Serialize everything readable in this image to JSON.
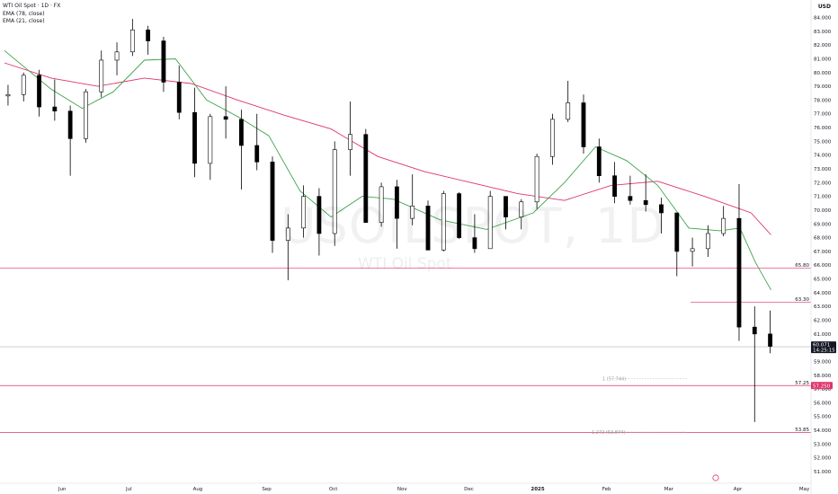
{
  "chart_data": {
    "type": "candlestick",
    "symbol_line": "WTI Oil Spot · 1D · FX",
    "indicators": [
      "EMA (78, close)",
      "EMA (21, close)"
    ],
    "currency": "USD",
    "watermark_symbol": "USOILSPOT, 1D",
    "watermark_name": "WTI Oil Spot",
    "ylim": [
      50.2,
      84.6
    ],
    "y_ticks": [
      "51.000",
      "52.000",
      "53.000",
      "54.000",
      "55.000",
      "56.000",
      "57.000",
      "58.000",
      "59.000",
      "60.000",
      "61.000",
      "62.000",
      "63.000",
      "64.000",
      "65.000",
      "66.000",
      "67.000",
      "68.000",
      "69.000",
      "70.000",
      "71.000",
      "72.000",
      "73.000",
      "74.000",
      "75.000",
      "76.000",
      "77.000",
      "78.000",
      "79.000",
      "80.000",
      "81.000",
      "82.000",
      "83.000",
      "84.000"
    ],
    "x_ticks": [
      {
        "label": "Jun",
        "date": "2024-06-01"
      },
      {
        "label": "Jul",
        "date": "2024-07-01"
      },
      {
        "label": "Aug",
        "date": "2024-08-01"
      },
      {
        "label": "Sep",
        "date": "2024-09-01"
      },
      {
        "label": "Oct",
        "date": "2024-10-01"
      },
      {
        "label": "Nov",
        "date": "2024-11-01"
      },
      {
        "label": "Dec",
        "date": "2024-12-01"
      },
      {
        "label": "2025",
        "date": "2025-01-01"
      },
      {
        "label": "Feb",
        "date": "2025-02-01"
      },
      {
        "label": "Mar",
        "date": "2025-03-01"
      },
      {
        "label": "Apr",
        "date": "2025-04-01"
      },
      {
        "label": "May",
        "date": "2025-05-01"
      }
    ],
    "x_range": [
      "2024-05-04",
      "2025-05-04"
    ],
    "current_price": {
      "label": "60.071",
      "countdown": "14:25:15",
      "value": 60.07
    },
    "horizontal_lines": [
      {
        "label": "65.80",
        "value": 65.8
      },
      {
        "label": "63.30",
        "value": 63.3
      },
      {
        "label": "57.25",
        "value": 57.25
      },
      {
        "label": "53.85",
        "value": 53.85
      }
    ],
    "highlight_label": {
      "label": "57.250",
      "value": 57.25
    },
    "fib_levels": [
      {
        "label": "1 (57.744)",
        "value": 57.744
      },
      {
        "label": "1.272 (53.874)",
        "value": 53.874
      }
    ],
    "ohlc": [
      [
        "2024-05-06",
        78.3,
        79.1,
        77.6,
        78.4
      ],
      [
        "2024-05-13",
        78.4,
        80.0,
        77.9,
        79.8
      ],
      [
        "2024-05-20",
        79.8,
        80.2,
        76.8,
        77.5
      ],
      [
        "2024-05-27",
        77.5,
        79.5,
        76.5,
        77.2
      ],
      [
        "2024-06-03",
        77.2,
        77.6,
        72.5,
        75.2
      ],
      [
        "2024-06-10",
        75.2,
        78.8,
        74.9,
        78.6
      ],
      [
        "2024-06-17",
        78.6,
        81.6,
        78.2,
        80.9
      ],
      [
        "2024-06-24",
        80.9,
        82.2,
        79.8,
        81.5
      ],
      [
        "2024-07-01",
        81.5,
        83.9,
        81.2,
        83.1
      ],
      [
        "2024-07-08",
        83.1,
        83.4,
        81.3,
        82.3
      ],
      [
        "2024-07-15",
        82.3,
        82.6,
        78.6,
        79.3
      ],
      [
        "2024-07-22",
        79.3,
        80.5,
        76.6,
        77.1
      ],
      [
        "2024-07-29",
        77.1,
        78.9,
        72.4,
        73.4
      ],
      [
        "2024-08-05",
        73.4,
        77.0,
        72.2,
        76.8
      ],
      [
        "2024-08-12",
        76.8,
        79.0,
        75.2,
        76.6
      ],
      [
        "2024-08-19",
        76.6,
        77.3,
        71.5,
        74.7
      ],
      [
        "2024-08-26",
        74.7,
        77.0,
        72.9,
        73.5
      ],
      [
        "2024-09-02",
        73.5,
        73.9,
        66.9,
        67.8
      ],
      [
        "2024-09-09",
        67.8,
        69.7,
        64.9,
        68.7
      ],
      [
        "2024-09-16",
        68.7,
        71.8,
        68.0,
        71.0
      ],
      [
        "2024-09-23",
        71.0,
        71.6,
        66.7,
        68.3
      ],
      [
        "2024-09-30",
        68.3,
        75.0,
        67.4,
        74.4
      ],
      [
        "2024-10-07",
        74.4,
        77.9,
        72.5,
        75.5
      ],
      [
        "2024-10-14",
        75.5,
        75.9,
        69.2,
        69.1
      ],
      [
        "2024-10-21",
        69.1,
        72.0,
        68.8,
        71.7
      ],
      [
        "2024-10-28",
        71.7,
        72.2,
        67.2,
        69.4
      ],
      [
        "2024-11-04",
        69.4,
        72.6,
        68.9,
        70.3
      ],
      [
        "2024-11-11",
        70.3,
        70.7,
        67.1,
        67.1
      ],
      [
        "2024-11-18",
        67.1,
        71.4,
        67.0,
        71.2
      ],
      [
        "2024-11-25",
        71.2,
        71.3,
        67.9,
        68.0
      ],
      [
        "2024-12-02",
        68.0,
        69.7,
        66.9,
        67.2
      ],
      [
        "2024-12-09",
        67.2,
        71.4,
        67.3,
        71.0
      ],
      [
        "2024-12-16",
        71.0,
        71.0,
        68.6,
        69.5
      ],
      [
        "2024-12-23",
        69.5,
        70.8,
        68.6,
        70.6
      ],
      [
        "2024-12-30",
        70.6,
        74.1,
        70.1,
        73.9
      ],
      [
        "2025-01-06",
        73.9,
        77.0,
        73.3,
        76.6
      ],
      [
        "2025-01-13",
        76.6,
        79.4,
        76.4,
        77.8
      ],
      [
        "2025-01-20",
        77.8,
        78.4,
        74.1,
        74.6
      ],
      [
        "2025-01-27",
        74.6,
        75.2,
        72.0,
        72.5
      ],
      [
        "2025-02-03",
        72.5,
        73.5,
        70.5,
        71.0
      ],
      [
        "2025-02-10",
        71.0,
        72.5,
        70.4,
        70.7
      ],
      [
        "2025-02-17",
        70.7,
        72.6,
        69.9,
        70.4
      ],
      [
        "2025-02-24",
        70.4,
        70.9,
        68.3,
        69.8
      ],
      [
        "2025-03-03",
        69.8,
        69.8,
        65.2,
        67.0
      ],
      [
        "2025-03-10",
        67.0,
        68.0,
        65.9,
        67.2
      ],
      [
        "2025-03-17",
        67.2,
        68.9,
        66.6,
        68.3
      ],
      [
        "2025-03-24",
        68.3,
        70.3,
        68.1,
        69.4
      ],
      [
        "2025-03-31",
        69.4,
        71.9,
        60.5,
        61.5
      ],
      [
        "2025-04-07",
        61.5,
        63.0,
        54.6,
        61.0
      ],
      [
        "2025-04-14",
        61.0,
        62.7,
        59.6,
        60.1
      ]
    ],
    "ema78": [
      [
        "2024-05-06",
        80.7
      ],
      [
        "2024-05-27",
        79.6
      ],
      [
        "2024-06-17",
        79.0
      ],
      [
        "2024-07-08",
        79.6
      ],
      [
        "2024-07-29",
        79.2
      ],
      [
        "2024-08-19",
        78.0
      ],
      [
        "2024-09-09",
        76.9
      ],
      [
        "2024-09-30",
        75.9
      ],
      [
        "2024-10-21",
        73.9
      ],
      [
        "2024-11-11",
        72.8
      ],
      [
        "2024-12-02",
        72.0
      ],
      [
        "2024-12-23",
        71.2
      ],
      [
        "2025-01-13",
        70.7
      ],
      [
        "2025-02-03",
        71.8
      ],
      [
        "2025-02-24",
        72.1
      ],
      [
        "2025-03-17",
        71.0
      ],
      [
        "2025-04-07",
        69.8
      ],
      [
        "2025-04-16",
        68.2
      ]
    ],
    "ema21": [
      [
        "2024-05-06",
        81.6
      ],
      [
        "2024-05-27",
        78.8
      ],
      [
        "2024-06-10",
        77.4
      ],
      [
        "2024-06-24",
        78.6
      ],
      [
        "2024-07-08",
        80.9
      ],
      [
        "2024-07-22",
        81.0
      ],
      [
        "2024-08-05",
        78.0
      ],
      [
        "2024-08-19",
        76.8
      ],
      [
        "2024-09-02",
        75.4
      ],
      [
        "2024-09-16",
        71.4
      ],
      [
        "2024-09-30",
        69.5
      ],
      [
        "2024-10-14",
        71.0
      ],
      [
        "2024-10-28",
        70.8
      ],
      [
        "2024-11-18",
        69.3
      ],
      [
        "2024-12-09",
        68.6
      ],
      [
        "2024-12-30",
        69.8
      ],
      [
        "2025-01-13",
        72.0
      ],
      [
        "2025-01-27",
        74.6
      ],
      [
        "2025-02-10",
        73.6
      ],
      [
        "2025-02-24",
        71.8
      ],
      [
        "2025-03-10",
        68.7
      ],
      [
        "2025-03-24",
        68.5
      ],
      [
        "2025-04-02",
        68.7
      ],
      [
        "2025-04-09",
        66.2
      ],
      [
        "2025-04-16",
        64.2
      ]
    ]
  }
}
